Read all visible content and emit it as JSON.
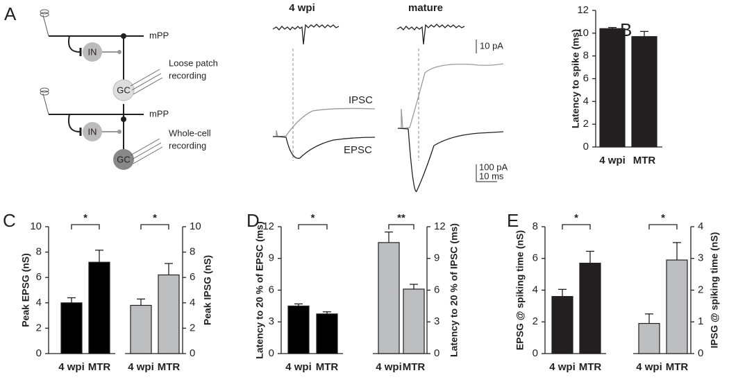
{
  "panel_a": {
    "letter": "A",
    "left_title": "4 wpi",
    "right_title": "mature",
    "path_top": "mPP",
    "path_bottom": "mPP",
    "in_top": "IN",
    "in_bottom": "IN",
    "gc_top": "GC",
    "gc_bottom": "GC",
    "loose_patch": "Loose patch",
    "loose_patch_2": "recording",
    "whole_cell": "Whole-cell",
    "whole_cell_2": "recording",
    "ipsc": "IPSC",
    "epsc": "EPSC",
    "scale_pa": "10 pA",
    "scale_pa_2": "100 pA",
    "scale_ms": "10 ms"
  },
  "chart_data": [
    {
      "type": "bar",
      "panel": "B",
      "ylabel": "Latency to spike (ms)",
      "categories": [
        "4 wpi",
        "MTR"
      ],
      "values": [
        10.4,
        9.7
      ],
      "errors": [
        0.1,
        0.45
      ],
      "color": "#231f20",
      "ylim": [
        0,
        12
      ],
      "yticks": [
        0,
        2,
        4,
        6,
        8,
        10,
        12
      ],
      "axis_side": "left"
    },
    {
      "type": "bar",
      "panel": "C",
      "ylabel": "Peak EPSG (nS)",
      "categories": [
        "4 wpi",
        "MTR"
      ],
      "values": [
        4.0,
        7.2
      ],
      "errors": [
        0.4,
        0.95
      ],
      "color": "#000000",
      "ylim": [
        0,
        10
      ],
      "yticks": [
        0,
        2,
        4,
        6,
        8,
        10
      ],
      "axis_side": "left",
      "annotation": "*"
    },
    {
      "type": "bar",
      "ylabel": "Peak IPSG (nS)",
      "categories": [
        "4 wpi",
        "MTR"
      ],
      "values": [
        3.8,
        6.2
      ],
      "errors": [
        0.5,
        0.9
      ],
      "color": "#bcbec0",
      "ylim": [
        0,
        10
      ],
      "yticks": [
        0,
        2,
        4,
        6,
        8,
        10
      ],
      "axis_side": "right",
      "annotation": "*"
    },
    {
      "type": "bar",
      "panel": "D",
      "ylabel": "Latency to 20 % of EPSC (ms)",
      "categories": [
        "4 wpi",
        "MTR"
      ],
      "values": [
        4.5,
        3.75
      ],
      "errors": [
        0.2,
        0.2
      ],
      "color": "#000000",
      "ylim": [
        0,
        12
      ],
      "yticks": [
        0,
        3,
        6,
        9,
        12
      ],
      "axis_side": "left",
      "annotation": "*"
    },
    {
      "type": "bar",
      "ylabel": "Latency to 20 % of IPSC (ms)",
      "categories": [
        "4 wpi",
        "MTR"
      ],
      "values": [
        10.5,
        6.1
      ],
      "errors": [
        1.0,
        0.45
      ],
      "color": "#bcbec0",
      "ylim": [
        0,
        12
      ],
      "yticks": [
        0,
        3,
        6,
        9,
        12
      ],
      "axis_side": "right",
      "annotation": "**"
    },
    {
      "type": "bar",
      "panel": "E",
      "ylabel": "EPSG @ spiking time (nS)",
      "categories": [
        "4 wpi",
        "MTR"
      ],
      "values": [
        3.6,
        5.7
      ],
      "errors": [
        0.45,
        0.75
      ],
      "color": "#231f20",
      "ylim": [
        0,
        8
      ],
      "yticks": [
        0,
        2,
        4,
        6,
        8
      ],
      "axis_side": "left",
      "annotation": "*"
    },
    {
      "type": "bar",
      "ylabel": "IPSG @ spiking time (nS)",
      "categories": [
        "4 wpi",
        "MTR"
      ],
      "values": [
        0.95,
        2.95
      ],
      "errors": [
        0.3,
        0.55
      ],
      "color": "#bcbec0",
      "ylim": [
        0,
        4
      ],
      "yticks": [
        0,
        1,
        2,
        3,
        4
      ],
      "axis_side": "right",
      "annotation": "*"
    }
  ]
}
